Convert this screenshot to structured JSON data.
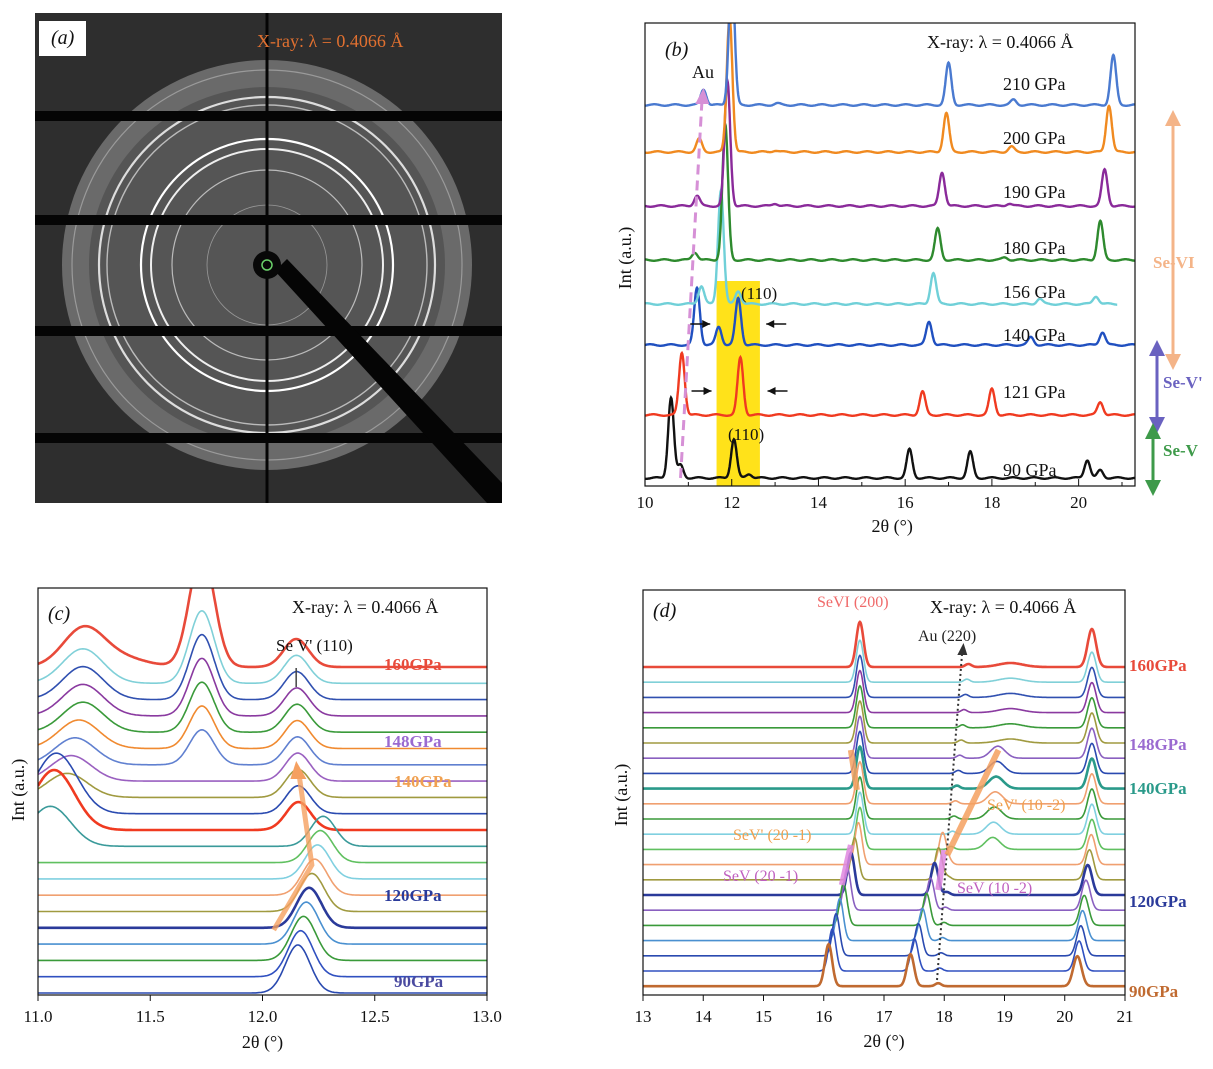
{
  "panels": {
    "a": {
      "label": "(a)",
      "xray": "X-ray: λ = 0.4066 Å"
    },
    "b": {
      "label": "(b)",
      "xray": "X-ray: λ = 0.4066 Å",
      "au": "Au",
      "hkl_top": "(110)",
      "hkl_bottom": "(110)",
      "phases": [
        {
          "name": "Se-VI",
          "color": "#f4b488"
        },
        {
          "name": "Se-V'",
          "color": "#6a62c0"
        },
        {
          "name": "Se-V",
          "color": "#3e9a4a"
        }
      ]
    },
    "c": {
      "label": "(c)",
      "xray": "X-ray: λ = 0.4066 Å",
      "annotation": "Se V' (110)",
      "pressure_labels": [
        {
          "text": "160GPa",
          "color": "#e84a3a"
        },
        {
          "text": "148GPa",
          "color": "#9a6ad0"
        },
        {
          "text": "140GPa",
          "color": "#f0a050"
        },
        {
          "text": "120GPa",
          "color": "#2a3a9a"
        },
        {
          "text": "90GPa",
          "color": "#4a4aa0"
        }
      ]
    },
    "d": {
      "label": "(d)",
      "xray": "X-ray: λ = 0.4066 Å",
      "annotations": [
        {
          "text": "SeVI (200)",
          "color": "#f06a6a"
        },
        {
          "text": "Au (220)",
          "color": "#222222"
        },
        {
          "text": "SeV' (20 -1)",
          "color": "#f0a050"
        },
        {
          "text": "SeV' (10 -2)",
          "color": "#f0a050"
        },
        {
          "text": "SeV (20 -1)",
          "color": "#c060c0"
        },
        {
          "text": "SeV (10 -2)",
          "color": "#c060c0"
        }
      ],
      "pressure_labels": [
        {
          "text": "160GPa",
          "color": "#e84a3a"
        },
        {
          "text": "148GPa",
          "color": "#9a6ad0"
        },
        {
          "text": "140GPa",
          "color": "#2a9a8a"
        },
        {
          "text": "120GPa",
          "color": "#2a3a9a"
        },
        {
          "text": "90GPa",
          "color": "#c06a30"
        }
      ]
    }
  },
  "chart_data": [
    {
      "panel": "b",
      "type": "line",
      "xlabel": "2θ (°)",
      "ylabel": "Int (a.u.)",
      "xlim": [
        10,
        21.3
      ],
      "xticks": [
        10,
        12,
        14,
        16,
        18,
        20
      ],
      "series": [
        {
          "name": "90 GPa",
          "color": "#111111",
          "peaks": [
            [
              10.6,
              1.55
            ],
            [
              10.82,
              0.25
            ],
            [
              12.05,
              0.75
            ],
            [
              12.4,
              0.08
            ],
            [
              16.1,
              0.55
            ],
            [
              17.5,
              0.5
            ],
            [
              20.2,
              0.35
            ],
            [
              20.5,
              0.15
            ]
          ]
        },
        {
          "name": "121 GPa",
          "color": "#f03a20",
          "peaks": [
            [
              10.85,
              1.2
            ],
            [
              12.2,
              1.1
            ],
            [
              16.4,
              0.45
            ],
            [
              18.0,
              0.5
            ],
            [
              20.5,
              0.25
            ]
          ]
        },
        {
          "name": "140 GPa",
          "color": "#2050c0",
          "peaks": [
            [
              11.2,
              1.1
            ],
            [
              11.7,
              0.35
            ],
            [
              12.15,
              0.9
            ],
            [
              16.55,
              0.45
            ],
            [
              18.9,
              0.15
            ],
            [
              20.55,
              0.25
            ]
          ]
        },
        {
          "name": "156 GPa",
          "color": "#70d0d8",
          "peaks": [
            [
              11.3,
              0.35
            ],
            [
              11.75,
              2.2
            ],
            [
              12.15,
              0.25
            ],
            [
              16.65,
              0.6
            ],
            [
              19.1,
              0.1
            ],
            [
              20.4,
              0.15
            ]
          ]
        },
        {
          "name": "180 GPa",
          "color": "#2e8a2e",
          "peaks": [
            [
              11.15,
              0.15
            ],
            [
              11.85,
              2.6
            ],
            [
              16.75,
              0.6
            ],
            [
              18.3,
              0.05
            ],
            [
              20.5,
              0.75
            ]
          ]
        },
        {
          "name": "190 GPa",
          "color": "#8a2a9a",
          "peaks": [
            [
              11.2,
              0.2
            ],
            [
              11.9,
              2.4
            ],
            [
              13.0,
              0.05
            ],
            [
              16.85,
              0.65
            ],
            [
              18.4,
              0.05
            ],
            [
              20.6,
              0.7
            ]
          ]
        },
        {
          "name": "200 GPa",
          "color": "#f08a20",
          "peaks": [
            [
              11.25,
              0.25
            ],
            [
              11.95,
              2.6
            ],
            [
              13.0,
              0.03
            ],
            [
              16.95,
              0.75
            ],
            [
              18.45,
              0.1
            ],
            [
              20.7,
              0.9
            ]
          ]
        },
        {
          "name": "210 GPa",
          "color": "#4a7ad0",
          "peaks": [
            [
              11.35,
              0.3
            ],
            [
              12.0,
              2.6
            ],
            [
              13.05,
              0.03
            ],
            [
              17.0,
              0.8
            ],
            [
              18.5,
              0.1
            ],
            [
              20.8,
              0.95
            ]
          ]
        }
      ]
    },
    {
      "panel": "c",
      "type": "line",
      "xlabel": "2θ (°)",
      "ylabel": "Int (a.u.)",
      "xlim": [
        11.0,
        13.0
      ],
      "xticks": [
        11.0,
        11.5,
        12.0,
        12.5,
        13.0
      ],
      "series_count": 19
    },
    {
      "panel": "d",
      "type": "line",
      "xlabel": "2θ (°)",
      "ylabel": "Int (a.u.)",
      "xlim": [
        13,
        21
      ],
      "xticks": [
        13,
        14,
        15,
        16,
        17,
        18,
        19,
        20,
        21
      ],
      "series_count": 22
    }
  ]
}
